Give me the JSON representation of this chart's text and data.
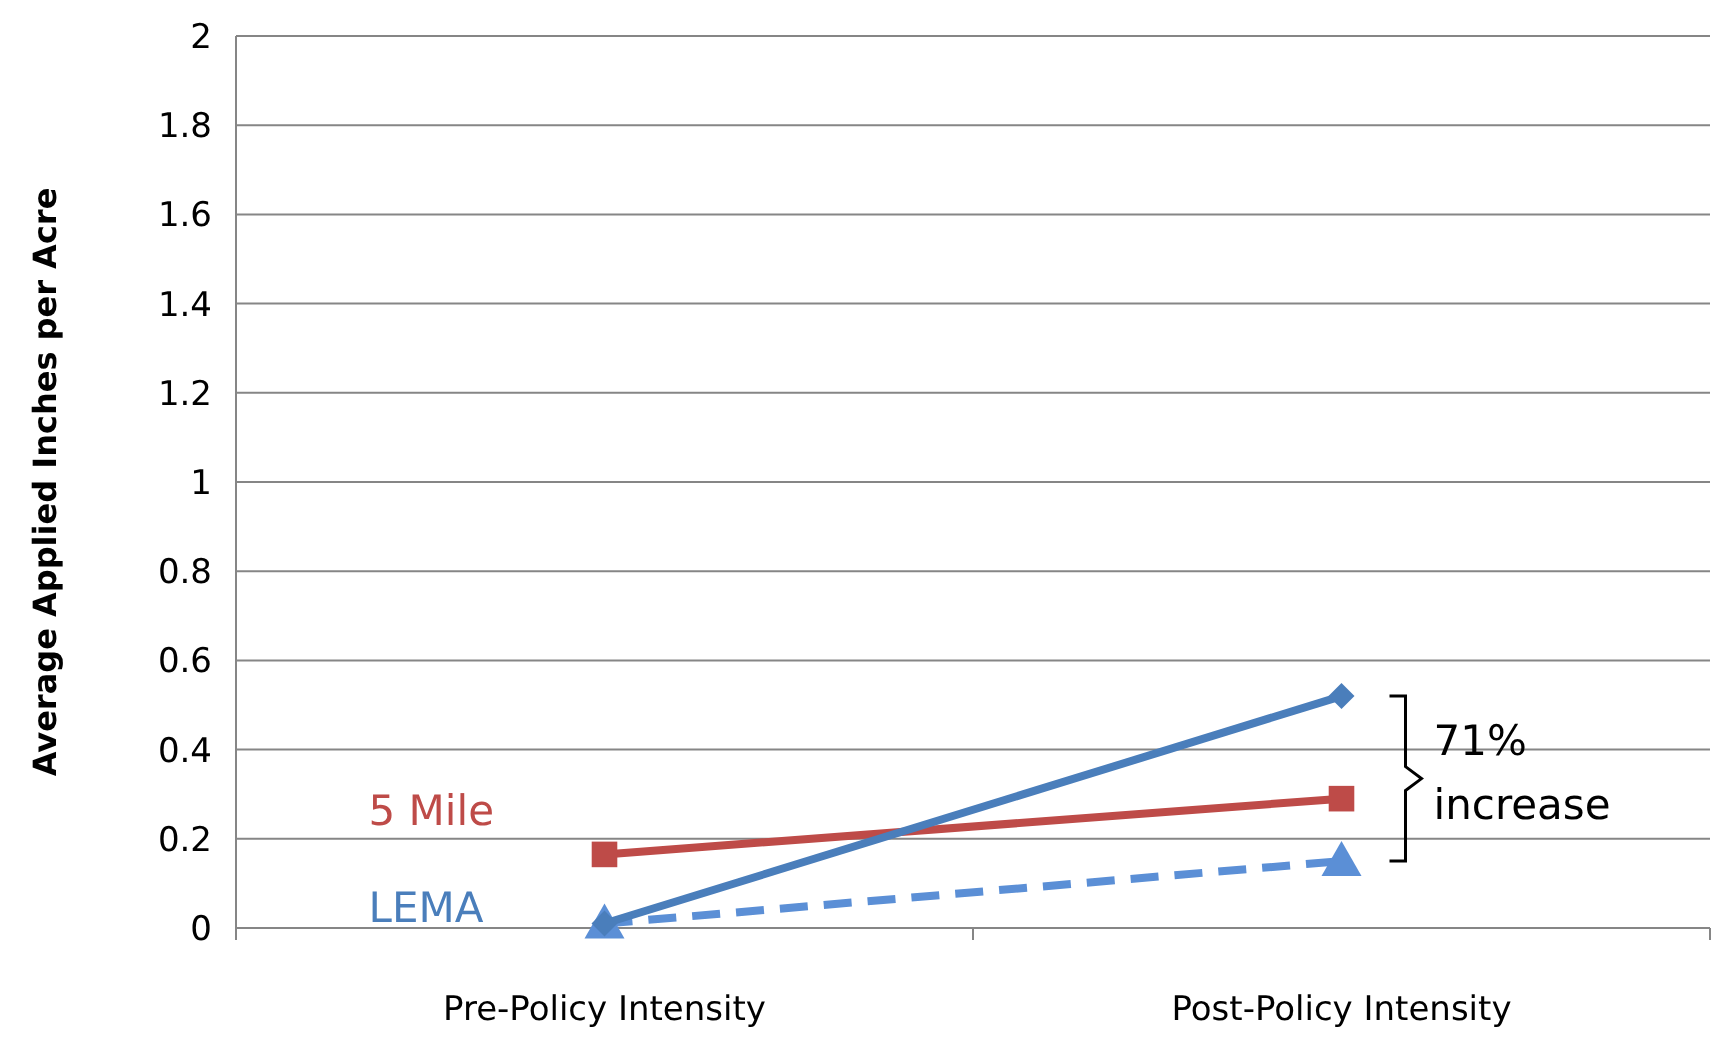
{
  "chart_data": {
    "type": "line",
    "ylabel": "Average Applied Inches per Acre",
    "categories": [
      "Pre-Policy Intensity",
      "Post-Policy Intensity"
    ],
    "series": [
      {
        "name": "LEMA",
        "color": "#4a7ebb",
        "values": [
          0.01,
          0.52
        ],
        "marker": "diamond",
        "line_style": "solid"
      },
      {
        "name": "5 Mile",
        "color": "#be4b48",
        "values": [
          0.165,
          0.29
        ],
        "marker": "square",
        "line_style": "solid"
      },
      {
        "color": "#5b8fd6",
        "values": [
          0.01,
          0.15
        ],
        "marker": "triangle",
        "line_style": "dashed"
      }
    ],
    "ylim": [
      0,
      2
    ],
    "yticks": [
      0,
      0.2,
      0.4,
      0.6,
      0.8,
      1,
      1.2,
      1.4,
      1.6,
      1.8,
      2
    ],
    "grid": "y",
    "annotations": [
      "71% increase"
    ]
  }
}
